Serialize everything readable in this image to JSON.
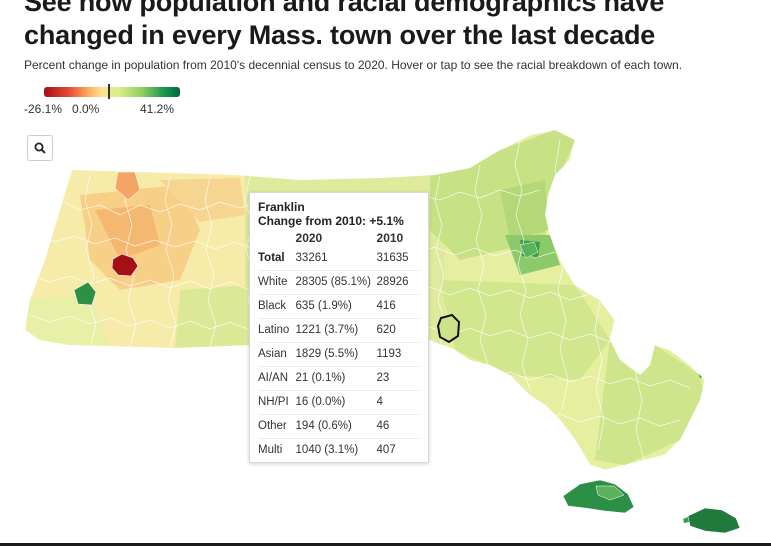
{
  "headline": "See how population and racial demographics have changed in every Mass. town over the last decade",
  "subhead": "Percent change in population from 2010's decennial census to 2020. Hover or tap to see the racial breakdown of each town.",
  "legend": {
    "min_label": "-26.1%",
    "mid_label": "0.0%",
    "max_label": "41.2%",
    "min_color": "#a50f15",
    "mid_color": "#fee08b",
    "max_color": "#00683a"
  },
  "zoom": {
    "icon": "search-icon"
  },
  "tooltip": {
    "town": "Franklin",
    "change_label": "Change from 2010:",
    "change_value": "+5.1%",
    "col_2020": "2020",
    "col_2010": "2010",
    "rows": [
      {
        "label": "Total",
        "v2020": "33261",
        "v2010": "31635"
      },
      {
        "label": "White",
        "v2020": "28305 (85.1%)",
        "v2010": "28926"
      },
      {
        "label": "Black",
        "v2020": "635 (1.9%)",
        "v2010": "416"
      },
      {
        "label": "Latino",
        "v2020": "1221 (3.7%)",
        "v2010": "620"
      },
      {
        "label": "Asian",
        "v2020": "1829 (5.5%)",
        "v2010": "1193"
      },
      {
        "label": "AI/AN",
        "v2020": "21 (0.1%)",
        "v2010": "23"
      },
      {
        "label": "NH/PI",
        "v2020": "16 (0.0%)",
        "v2010": "4"
      },
      {
        "label": "Other",
        "v2020": "194 (0.6%)",
        "v2010": "46"
      },
      {
        "label": "Multi",
        "v2020": "1040 (3.1%)",
        "v2010": "407"
      }
    ]
  }
}
